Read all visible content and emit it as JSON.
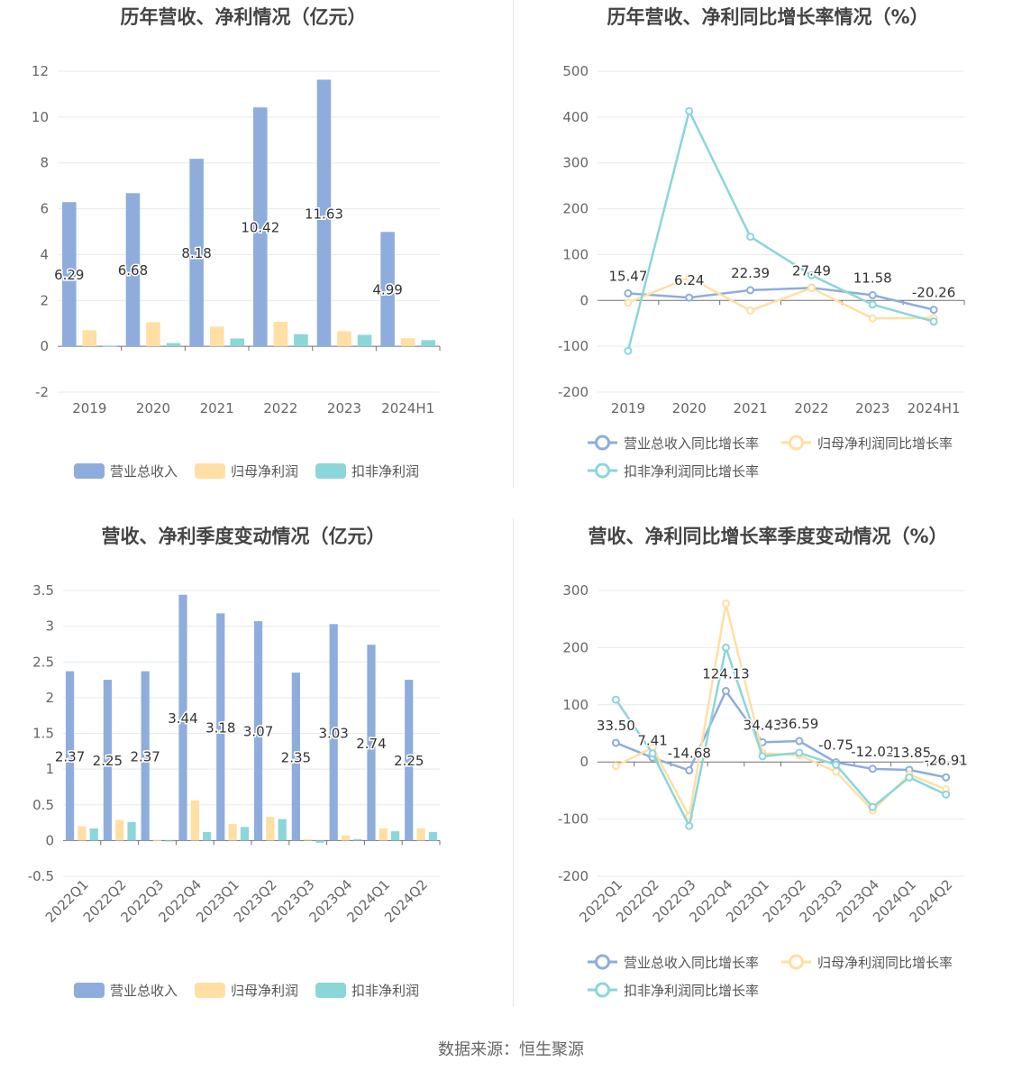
{
  "source": "数据来源：恒生聚源",
  "colors": {
    "revenue": "#8EADDC",
    "netProfit": "#FFDFA3",
    "deducted": "#8BD6D9"
  },
  "chart_data": [
    {
      "id": "annual-amounts",
      "type": "bar",
      "title": "历年营收、净利情况（亿元）",
      "categories": [
        "2019",
        "2020",
        "2021",
        "2022",
        "2023",
        "2024H1"
      ],
      "ylim": [
        -2,
        12
      ],
      "yticks": [
        -2,
        0,
        2,
        4,
        6,
        8,
        10,
        12
      ],
      "ytick_labels": [
        "-2",
        "0",
        "2",
        "4",
        "6",
        "8",
        "10",
        "12"
      ],
      "series": [
        {
          "name": "营业总收入",
          "color": "#8EADDC",
          "values": [
            6.29,
            6.68,
            8.18,
            10.42,
            11.63,
            4.99
          ],
          "show_labels": true
        },
        {
          "name": "归母净利润",
          "color": "#FFDFA3",
          "values": [
            0.7,
            1.05,
            0.86,
            1.07,
            0.66,
            0.35
          ],
          "show_labels": false
        },
        {
          "name": "扣非净利润",
          "color": "#8BD6D9",
          "values": [
            0.03,
            0.14,
            0.34,
            0.53,
            0.5,
            0.27
          ],
          "show_labels": false
        }
      ],
      "legend": "bottom",
      "grid": true
    },
    {
      "id": "annual-growth",
      "type": "line",
      "title": "历年营收、净利同比增长率情况（%）",
      "categories": [
        "2019",
        "2020",
        "2021",
        "2022",
        "2023",
        "2024H1"
      ],
      "ylim": [
        -200,
        500
      ],
      "yticks": [
        -200,
        -100,
        0,
        100,
        200,
        300,
        400,
        500
      ],
      "ytick_labels": [
        "-200",
        "-100",
        "0",
        "100",
        "200",
        "300",
        "400",
        "500"
      ],
      "series": [
        {
          "name": "营业总收入同比增长率",
          "color": "#8EADDC",
          "values": [
            15.47,
            6.24,
            22.39,
            27.49,
            11.58,
            -20.26
          ],
          "labels": [
            "15.47",
            "6.24",
            "22.39",
            "27.49",
            "11.58",
            "-20.26"
          ]
        },
        {
          "name": "归母净利润同比增长率",
          "color": "#FFDFA3",
          "values": [
            -5,
            50,
            -22,
            27,
            -39,
            -38
          ]
        },
        {
          "name": "扣非净利润同比增长率",
          "color": "#8BD6D9",
          "values": [
            -110,
            413,
            139,
            55,
            -9,
            -46
          ]
        }
      ],
      "legend": "bottom",
      "grid": true
    },
    {
      "id": "quarterly-amounts",
      "type": "bar",
      "title": "营收、净利季度变动情况（亿元）",
      "categories": [
        "2022Q1",
        "2022Q2",
        "2022Q3",
        "2022Q4",
        "2023Q1",
        "2023Q2",
        "2023Q3",
        "2023Q4",
        "2024Q1",
        "2024Q2"
      ],
      "ylim": [
        -0.5,
        3.5
      ],
      "yticks": [
        -0.5,
        0,
        0.5,
        1,
        1.5,
        2,
        2.5,
        3,
        3.5
      ],
      "ytick_labels": [
        "-0.5",
        "0",
        "0.5",
        "1",
        "1.5",
        "2",
        "2.5",
        "3",
        "3.5"
      ],
      "series": [
        {
          "name": "营业总收入",
          "color": "#8EADDC",
          "values": [
            2.37,
            2.25,
            2.37,
            3.44,
            3.18,
            3.07,
            2.35,
            3.03,
            2.74,
            2.25
          ],
          "show_labels": true
        },
        {
          "name": "归母净利润",
          "color": "#FFDFA3",
          "values": [
            0.2,
            0.29,
            0.01,
            0.56,
            0.23,
            0.33,
            0.02,
            0.07,
            0.17,
            0.17
          ],
          "show_labels": false
        },
        {
          "name": "扣非净利润",
          "color": "#8BD6D9",
          "values": [
            0.17,
            0.26,
            -0.01,
            0.12,
            0.19,
            0.3,
            -0.03,
            0.02,
            0.13,
            0.12
          ],
          "show_labels": false
        }
      ],
      "legend": "bottom",
      "grid": true
    },
    {
      "id": "quarterly-growth",
      "type": "line",
      "title": "营收、净利同比增长率季度变动情况（%）",
      "categories": [
        "2022Q1",
        "2022Q2",
        "2022Q3",
        "2022Q4",
        "2023Q1",
        "2023Q2",
        "2023Q3",
        "2023Q4",
        "2024Q1",
        "2024Q2"
      ],
      "ylim": [
        -200,
        300
      ],
      "yticks": [
        -200,
        -100,
        0,
        100,
        200,
        300
      ],
      "ytick_labels": [
        "-200",
        "-100",
        "0",
        "100",
        "200",
        "300"
      ],
      "series": [
        {
          "name": "营业总收入同比增长率",
          "color": "#8EADDC",
          "values": [
            33.5,
            7.41,
            -14.68,
            124.13,
            34.43,
            36.59,
            -0.75,
            -12.02,
            -13.85,
            -26.91
          ],
          "labels": [
            "33.50",
            "7.41",
            "-14.68",
            "124.13",
            "34.43",
            "36.59",
            "-0.75",
            "-12.02",
            "-13.85",
            "-26.91"
          ]
        },
        {
          "name": "归母净利润同比增长率",
          "color": "#FFDFA3",
          "values": [
            -7,
            25,
            -95,
            277,
            15,
            12,
            -17,
            -85,
            -22,
            -48
          ]
        },
        {
          "name": "扣非净利润同比增长率",
          "color": "#8BD6D9",
          "values": [
            109,
            15,
            -112,
            200,
            10,
            16,
            -5,
            -79,
            -27,
            -57
          ]
        }
      ],
      "legend": "bottom",
      "grid": true
    }
  ]
}
